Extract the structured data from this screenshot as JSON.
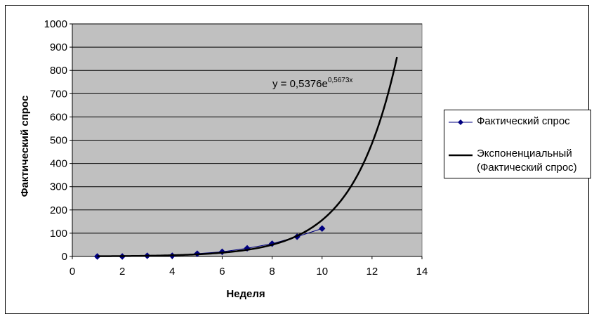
{
  "chart_data": {
    "type": "scatter",
    "xlabel": "Неделя",
    "ylabel": "Фактический спрос",
    "xlim": [
      0,
      14
    ],
    "ylim": [
      0,
      1000
    ],
    "x_ticks": [
      0,
      2,
      4,
      6,
      8,
      10,
      12,
      14
    ],
    "y_ticks": [
      0,
      100,
      200,
      300,
      400,
      500,
      600,
      700,
      800,
      900,
      1000
    ],
    "grid": true,
    "plot_background": "#c0c0c0",
    "legend_position": "right",
    "series": [
      {
        "name": "Фактический спрос",
        "kind": "line-marker",
        "color": "#000080",
        "x": [
          1,
          2,
          3,
          4,
          5,
          6,
          7,
          8,
          9,
          10
        ],
        "y": [
          0,
          0,
          3,
          3,
          12,
          20,
          35,
          55,
          85,
          120
        ]
      },
      {
        "name": "Экспоненциальный (Фактический спрос)",
        "kind": "trendline",
        "color": "#000000",
        "coef_a": 0.5376,
        "coef_b": 0.5673,
        "x_range": [
          1,
          13
        ]
      }
    ],
    "annotation": {
      "equation_base": "y = 0,5376e",
      "equation_exponent": "0,5673x"
    }
  },
  "legend": {
    "item1_label": "Фактический спрос",
    "item2_line1": "Экспоненциальный",
    "item2_line2": "(Фактический спрос)"
  }
}
